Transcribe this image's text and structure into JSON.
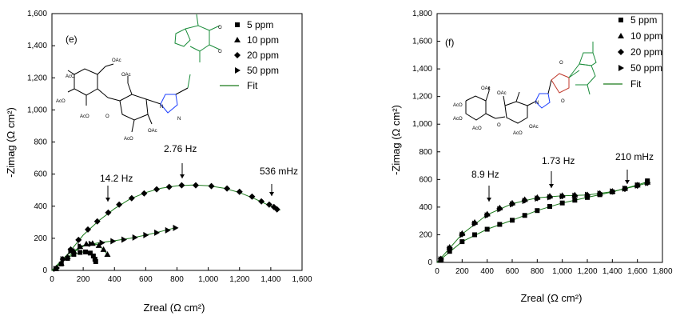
{
  "chart_data": [
    {
      "type": "scatter",
      "panel_label": "(e)",
      "xlabel": "Zreal (Ω cm²)",
      "ylabel": "-Zimag (Ω cm²)",
      "xlim": [
        0,
        1600
      ],
      "ylim": [
        0,
        1600
      ],
      "xticks": [
        "0",
        "200",
        "400",
        "600",
        "800",
        "1,000",
        "1,200",
        "1,400",
        "1,600"
      ],
      "yticks": [
        "0",
        "200",
        "400",
        "600",
        "800",
        "1,000",
        "1,200",
        "1,400",
        "1,600"
      ],
      "legend": [
        "5 ppm",
        "10 ppm",
        "20 ppm",
        "50 ppm",
        "Fit"
      ],
      "legend_position": "top-right",
      "annotations": [
        "14.2 Hz",
        "2.76 Hz",
        "536 mHz"
      ],
      "series": [
        {
          "name": "5 ppm",
          "marker": "square",
          "x": [
            25,
            60,
            100,
            140,
            180,
            215,
            245,
            265,
            275,
            280
          ],
          "y": [
            10,
            40,
            75,
            100,
            112,
            115,
            108,
            90,
            70,
            55
          ]
        },
        {
          "name": "10 ppm",
          "marker": "triangle",
          "x": [
            25,
            60,
            100,
            140,
            180,
            220,
            260,
            300,
            330,
            355
          ],
          "y": [
            10,
            45,
            85,
            120,
            148,
            165,
            168,
            155,
            130,
            100
          ]
        },
        {
          "name": "20 ppm",
          "marker": "diamond",
          "x": [
            30,
            70,
            120,
            170,
            230,
            290,
            360,
            430,
            510,
            590,
            670,
            750,
            830,
            920,
            1020,
            1120,
            1200,
            1280,
            1340,
            1390,
            1420,
            1440
          ],
          "y": [
            15,
            70,
            130,
            190,
            255,
            305,
            360,
            410,
            450,
            480,
            505,
            520,
            530,
            530,
            525,
            510,
            490,
            460,
            430,
            410,
            395,
            380
          ]
        },
        {
          "name": "50 ppm",
          "marker": "right-triangle",
          "x": [
            25,
            70,
            120,
            180,
            250,
            320,
            390,
            460,
            530,
            600,
            670,
            740,
            790
          ],
          "y": [
            10,
            70,
            120,
            150,
            165,
            172,
            182,
            192,
            205,
            220,
            235,
            250,
            265
          ]
        }
      ],
      "fits": [
        {
          "x": [
            0,
            50,
            100,
            150,
            200,
            250,
            280
          ],
          "y": [
            0,
            45,
            80,
            103,
            115,
            110,
            55
          ]
        },
        {
          "x": [
            0,
            50,
            100,
            150,
            200,
            250,
            300,
            355
          ],
          "y": [
            0,
            40,
            82,
            120,
            150,
            165,
            160,
            100
          ]
        },
        {
          "x": [
            0,
            100,
            200,
            300,
            400,
            500,
            600,
            700,
            800,
            900,
            1000,
            1100,
            1200,
            1300,
            1400,
            1460
          ],
          "y": [
            0,
            100,
            220,
            310,
            385,
            445,
            485,
            512,
            527,
            532,
            528,
            512,
            485,
            445,
            400,
            375
          ]
        },
        {
          "x": [
            0,
            100,
            200,
            300,
            400,
            500,
            600,
            700,
            800
          ],
          "y": [
            0,
            100,
            155,
            172,
            185,
            200,
            220,
            243,
            268
          ]
        }
      ]
    },
    {
      "type": "scatter",
      "panel_label": "(f)",
      "xlabel": "Zreal (Ω cm²)",
      "ylabel": "-Zimag (Ω cm²)",
      "xlim": [
        0,
        1800
      ],
      "ylim": [
        0,
        1800
      ],
      "xticks": [
        "0",
        "200",
        "400",
        "600",
        "800",
        "1,000",
        "1,200",
        "1,400",
        "1,600",
        "1,800"
      ],
      "yticks": [
        "0",
        "200",
        "400",
        "600",
        "800",
        "1,000",
        "1,200",
        "1,400",
        "1,600",
        "1,800"
      ],
      "legend": [
        "5 ppm",
        "10 ppm",
        "20 ppm",
        "50 ppm",
        "Fit"
      ],
      "legend_position": "top-right",
      "annotations": [
        "8.9 Hz",
        "1.73 Hz",
        "210 mHz"
      ],
      "series": [
        {
          "name": "5 ppm",
          "marker": "square",
          "x": [
            30,
            100,
            200,
            300,
            400,
            500,
            600,
            700,
            800,
            900,
            1000,
            1100,
            1200,
            1300,
            1400,
            1500,
            1600,
            1680
          ],
          "y": [
            20,
            80,
            150,
            200,
            240,
            275,
            305,
            340,
            375,
            405,
            430,
            450,
            470,
            490,
            510,
            535,
            560,
            590
          ]
        },
        {
          "name": "10 ppm",
          "marker": "triangle",
          "x": [
            30,
            100,
            200,
            300,
            400,
            500,
            600,
            700,
            800,
            900,
            1000,
            1100,
            1200,
            1300,
            1400,
            1500,
            1600,
            1680
          ],
          "y": [
            25,
            110,
            210,
            290,
            350,
            395,
            430,
            455,
            470,
            480,
            485,
            488,
            490,
            500,
            515,
            535,
            560,
            580
          ]
        },
        {
          "name": "20 ppm",
          "marker": "diamond",
          "x": [
            30,
            100,
            200,
            300,
            400,
            500,
            600,
            700,
            800,
            900,
            1000,
            1100,
            1200,
            1300,
            1400,
            1500,
            1600,
            1680
          ],
          "y": [
            25,
            105,
            205,
            285,
            345,
            390,
            425,
            450,
            465,
            475,
            480,
            483,
            487,
            497,
            512,
            532,
            555,
            575
          ]
        },
        {
          "name": "50 ppm",
          "marker": "right-triangle",
          "x": [
            30,
            100,
            200,
            300,
            400,
            500,
            600,
            700,
            800,
            900,
            1000,
            1100,
            1200,
            1300,
            1400,
            1500,
            1600,
            1680
          ],
          "y": [
            22,
            100,
            200,
            280,
            340,
            385,
            420,
            445,
            462,
            472,
            478,
            482,
            488,
            498,
            514,
            534,
            556,
            575
          ]
        }
      ],
      "fits": [
        {
          "x": [
            0,
            200,
            400,
            600,
            800,
            1000,
            1200,
            1400,
            1600,
            1700
          ],
          "y": [
            0,
            150,
            240,
            305,
            375,
            430,
            470,
            510,
            560,
            590
          ]
        },
        {
          "x": [
            0,
            200,
            400,
            600,
            800,
            1000,
            1200,
            1400,
            1600,
            1700
          ],
          "y": [
            0,
            205,
            345,
            425,
            467,
            482,
            488,
            512,
            555,
            580
          ]
        }
      ]
    }
  ]
}
